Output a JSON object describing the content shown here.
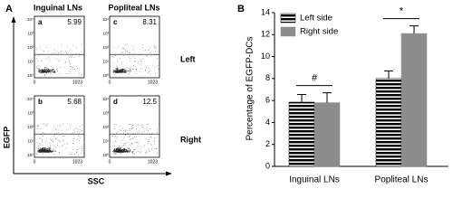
{
  "panel_a": {
    "label": "A",
    "columns": [
      "Inguinal LNs",
      "Popliteal LNs"
    ],
    "rows": [
      "Left",
      "Right"
    ],
    "y_axis_label": "EGFP",
    "x_axis_label": "SSC",
    "yticks": [
      "10⁰",
      "10¹",
      "10²",
      "10³",
      "10⁴"
    ],
    "xticks": [
      0,
      1023
    ],
    "plots": [
      {
        "letter": "a",
        "value": 5.99
      },
      {
        "letter": "c",
        "value": 8.31
      },
      {
        "letter": "b",
        "value": 5.68
      },
      {
        "letter": "d",
        "value": 12.5
      }
    ]
  },
  "chart_data": {
    "type": "bar",
    "label": "B",
    "y_axis_label": "Percentage of EGFP-DCs",
    "categories": [
      "Inguinal LNs",
      "Popliteal LNs"
    ],
    "series": [
      {
        "name": "Left side",
        "color": "#000000",
        "pattern": "horizontal-stripes",
        "values": [
          5.85,
          8.0
        ],
        "errors": [
          0.7,
          0.7
        ]
      },
      {
        "name": "Right side",
        "color": "#8c8c8c",
        "values": [
          5.8,
          12.1
        ],
        "errors": [
          0.9,
          0.7
        ]
      }
    ],
    "annotations": [
      "#",
      "*"
    ],
    "ylim": [
      0,
      14
    ],
    "yticks": [
      0,
      2,
      4,
      6,
      8,
      10,
      12,
      14
    ],
    "legend": "upper-left"
  }
}
